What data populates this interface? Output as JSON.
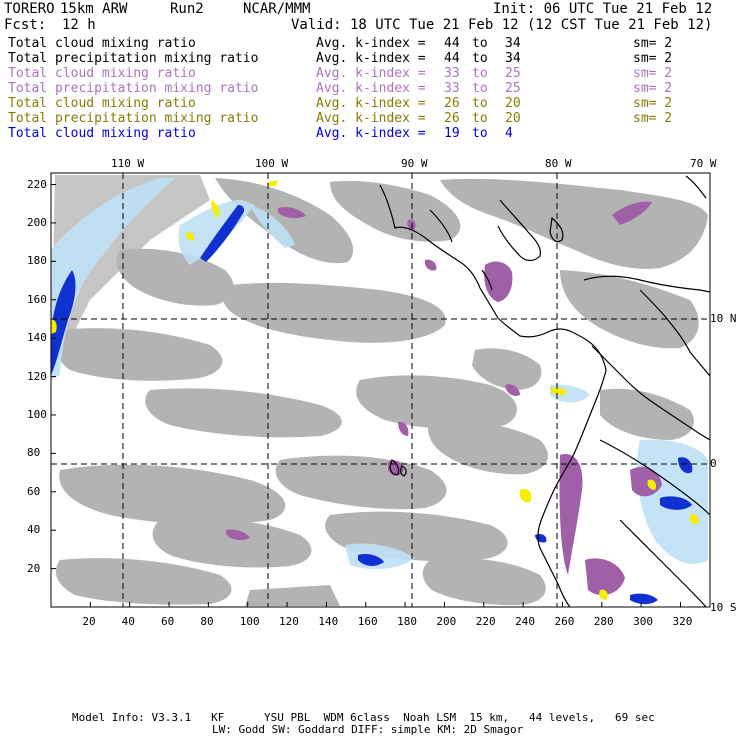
{
  "header": {
    "model": "TORERO",
    "resolution": "15km ARW",
    "run": "Run2",
    "org": "NCAR/MMM",
    "init": "Init: 06 UTC Tue 21 Feb 12",
    "fcst_label": "Fcst:",
    "fcst_value": "12 h",
    "valid": "Valid: 18 UTC Tue 21 Feb 12 (12 CST Tue 21 Feb 12)"
  },
  "legend": [
    {
      "name": "Total cloud mixing ratio",
      "kindex": "Avg. k-index =",
      "from": "44",
      "to_word": "to",
      "to": "34",
      "sm": "sm= 2",
      "color": "#000000"
    },
    {
      "name": "Total precipitation mixing ratio",
      "kindex": "Avg. k-index =",
      "from": "44",
      "to_word": "to",
      "to": "34",
      "sm": "sm= 2",
      "color": "#000000"
    },
    {
      "name": "Total cloud mixing ratio",
      "kindex": "Avg. k-index =",
      "from": "33",
      "to_word": "to",
      "to": "25",
      "sm": "sm= 2",
      "color": "#b070c0"
    },
    {
      "name": "Total precipitation mixing ratio",
      "kindex": "Avg. k-index =",
      "from": "33",
      "to_word": "to",
      "to": "25",
      "sm": "sm= 2",
      "color": "#b070c0"
    },
    {
      "name": "Total cloud mixing ratio",
      "kindex": "Avg. k-index =",
      "from": "26",
      "to_word": "to",
      "to": "20",
      "sm": "sm= 2",
      "color": "#8a7a00"
    },
    {
      "name": "Total precipitation mixing ratio",
      "kindex": "Avg. k-index =",
      "from": "26",
      "to_word": "to",
      "to": "20",
      "sm": "sm= 2",
      "color": "#8a7a00"
    },
    {
      "name": "Total cloud mixing ratio",
      "kindex": "Avg. k-index =",
      "from": "19",
      "to_word": "to",
      "to": "4",
      "sm": "",
      "color": "#0000dd"
    }
  ],
  "map": {
    "top_lon_labels": [
      "110 W",
      "100 W",
      "90 W",
      "80 W",
      "70 W"
    ],
    "right_lat_labels": [
      "10 N",
      "0",
      "10 S"
    ],
    "x_ticks": [
      "20",
      "40",
      "60",
      "80",
      "100",
      "120",
      "140",
      "160",
      "180",
      "200",
      "220",
      "240",
      "260",
      "280",
      "300",
      "320"
    ],
    "y_ticks": [
      "20",
      "40",
      "60",
      "80",
      "100",
      "120",
      "140",
      "160",
      "180",
      "200",
      "220"
    ],
    "x_range": [
      0,
      335
    ],
    "y_range": [
      0,
      226
    ],
    "grid_x": [
      38,
      113,
      185,
      260
    ],
    "grid_y": [
      75,
      150
    ],
    "colors": {
      "cloud_gray": "#a0a0a0",
      "purple": "#9a4a9a",
      "light_blue": "#bfe0f5",
      "blue": "#0010c8",
      "yellow": "#f5f000"
    }
  },
  "footer": {
    "line1": "Model Info: V3.3.1   KF      YSU PBL  WDM 6class  Noah LSM  15 km,   44 levels,   69 sec",
    "line2": "LW: Godd SW: Goddard DIFF: simple KM: 2D Smagor"
  }
}
